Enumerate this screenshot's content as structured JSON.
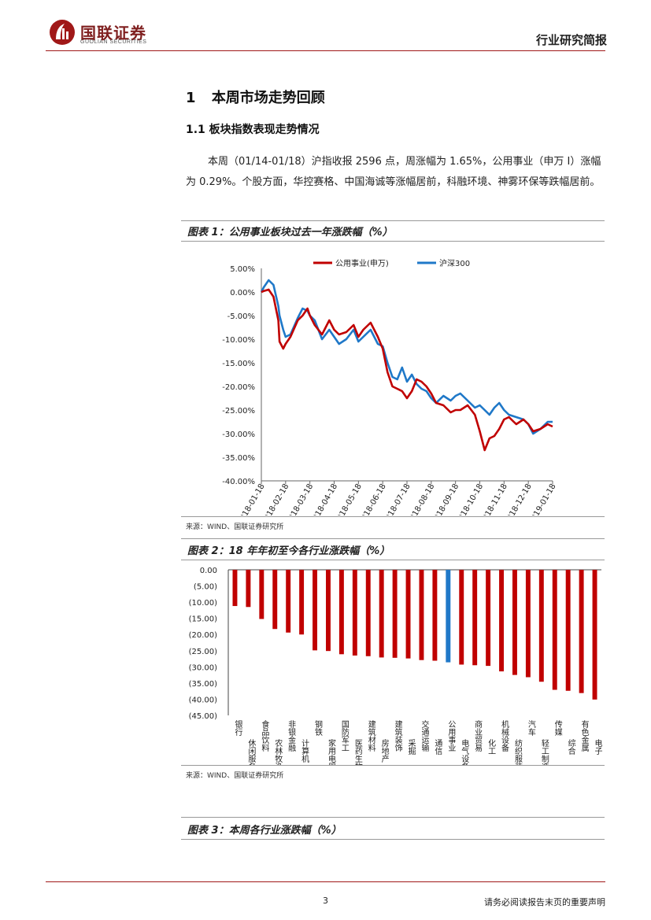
{
  "header": {
    "logo_text": "国联证券",
    "logo_sub": "GUOLIAN SECURITIES",
    "report_type": "行业研究简报",
    "brand_color": "#a01818"
  },
  "section": {
    "h1_num": "1",
    "h1_title": "本周市场走势回顾",
    "h2": "1.1 板块指数表现走势情况",
    "paragraph": "本周（01/14-01/18）沪指收报 2596 点，周涨幅为 1.65%，公用事业（申万 I）涨幅为 0.29%。个股方面，华控赛格、中国海诚等涨幅居前，科融环境、神雾环保等跌幅居前。"
  },
  "figure1": {
    "title": "图表 1：公用事业板块过去一年涨跌幅（%）",
    "source": "来源：WIND、国联证券研究所"
  },
  "figure2": {
    "title": "图表 2：18 年年初至今各行业涨跌幅（%）",
    "source": "来源：WIND、国联证券研究所"
  },
  "figure3": {
    "title": "图表 3：本周各行业涨跌幅（%）"
  },
  "footer": {
    "page": "3",
    "disclaimer": "请务必阅读报告末页的重要声明"
  },
  "chart_data": [
    {
      "type": "line",
      "title": "",
      "ylim": [
        -40,
        5
      ],
      "y_ticks": [
        5,
        0,
        -5,
        -10,
        -15,
        -20,
        -25,
        -30,
        -35,
        -40
      ],
      "y_tick_labels": [
        "5.00%",
        "0.00%",
        "-5.00%",
        "-10.00%",
        "-15.00%",
        "-20.00%",
        "-25.00%",
        "-30.00%",
        "-35.00%",
        "-40.00%"
      ],
      "categories": [
        "2018-01-18",
        "2018-02-18",
        "2018-03-18",
        "2018-04-18",
        "2018-05-18",
        "2018-06-18",
        "2018-07-18",
        "2018-08-18",
        "2018-09-18",
        "2018-10-18",
        "2018-11-18",
        "2018-12-18",
        "2019-01-18"
      ],
      "legend_position": "top",
      "series": [
        {
          "name": "公用事业(申万)",
          "color": "#c00000",
          "x": [
            0,
            0.1,
            0.3,
            0.5,
            0.7,
            0.75,
            0.9,
            1.0,
            1.2,
            1.5,
            1.7,
            1.9,
            2.0,
            2.2,
            2.5,
            2.8,
            3.0,
            3.2,
            3.5,
            3.8,
            4.0,
            4.2,
            4.5,
            4.8,
            5.0,
            5.2,
            5.4,
            5.6,
            5.8,
            6.0,
            6.2,
            6.4,
            6.6,
            6.8,
            7.0,
            7.2,
            7.5,
            7.8,
            8.0,
            8.2,
            8.5,
            8.8,
            9.0,
            9.2,
            9.4,
            9.6,
            9.8,
            10.0,
            10.2,
            10.5,
            10.8,
            11.0,
            11.2,
            11.5,
            11.8,
            12.0
          ],
          "values": [
            0,
            0.2,
            0.5,
            -1.0,
            -6.0,
            -10.5,
            -12.0,
            -11.0,
            -9.5,
            -6.0,
            -5.0,
            -3.5,
            -5.0,
            -7.0,
            -9.0,
            -6.0,
            -8.0,
            -9.0,
            -8.5,
            -7.0,
            -9.5,
            -8.0,
            -6.5,
            -9.5,
            -12.0,
            -17.0,
            -20.0,
            -20.5,
            -21.0,
            -22.5,
            -21.0,
            -18.5,
            -19.0,
            -20.0,
            -21.5,
            -23.5,
            -24.0,
            -25.5,
            -25.0,
            -25.0,
            -24.0,
            -26.0,
            -29.5,
            -33.5,
            -31.0,
            -30.5,
            -29.0,
            -27.0,
            -26.5,
            -28.0,
            -27.0,
            -28.0,
            -29.5,
            -29.0,
            -28.0,
            -28.5
          ]
        },
        {
          "name": "沪深300",
          "color": "#1f78c8",
          "x": [
            0,
            0.1,
            0.3,
            0.5,
            0.7,
            0.75,
            0.9,
            1.0,
            1.2,
            1.5,
            1.7,
            1.9,
            2.0,
            2.2,
            2.5,
            2.8,
            3.0,
            3.2,
            3.5,
            3.8,
            4.0,
            4.2,
            4.5,
            4.8,
            5.0,
            5.2,
            5.4,
            5.6,
            5.8,
            6.0,
            6.2,
            6.4,
            6.6,
            6.8,
            7.0,
            7.2,
            7.5,
            7.8,
            8.0,
            8.2,
            8.5,
            8.8,
            9.0,
            9.2,
            9.4,
            9.6,
            9.8,
            10.0,
            10.2,
            10.5,
            10.8,
            11.0,
            11.2,
            11.5,
            11.8,
            12.0
          ],
          "values": [
            0,
            1.0,
            2.5,
            1.5,
            -3.0,
            -5.0,
            -8.0,
            -9.5,
            -9.0,
            -5.5,
            -3.5,
            -4.0,
            -5.0,
            -6.0,
            -10.0,
            -8.0,
            -9.5,
            -11.0,
            -10.0,
            -8.0,
            -10.5,
            -9.5,
            -8.0,
            -11.0,
            -11.5,
            -15.0,
            -18.0,
            -18.5,
            -16.0,
            -19.0,
            -17.5,
            -19.5,
            -20.5,
            -21.0,
            -22.5,
            -23.5,
            -22.0,
            -23.0,
            -22.0,
            -21.5,
            -23.0,
            -24.5,
            -24.0,
            -25.0,
            -26.0,
            -24.5,
            -23.5,
            -25.0,
            -26.0,
            -26.5,
            -27.0,
            -28.0,
            -30.0,
            -29.0,
            -27.5,
            -27.5
          ]
        }
      ]
    },
    {
      "type": "bar",
      "title": "",
      "ylim": [
        -45,
        0
      ],
      "y_ticks": [
        0,
        -5,
        -10,
        -15,
        -20,
        -25,
        -30,
        -35,
        -40,
        -45
      ],
      "y_tick_labels": [
        "0.00",
        "(5.00)",
        "(10.00)",
        "(15.00)",
        "(20.00)",
        "(25.00)",
        "(30.00)",
        "(35.00)",
        "(40.00)",
        "(45.00)"
      ],
      "categories": [
        "银行",
        "休闲服务",
        "食品饮料",
        "农林牧渔",
        "非银金融",
        "计算机",
        "钢铁",
        "家用电器",
        "国防军工",
        "医药生物",
        "建筑材料",
        "房地产",
        "建筑装饰",
        "采掘",
        "交通运输",
        "通信",
        "公用事业",
        "电气设备",
        "商业贸易",
        "化工",
        "机械设备",
        "纺织服装",
        "汽车",
        "轻工制造",
        "传媒",
        "综合",
        "有色金属",
        "电子"
      ],
      "values": [
        -11.2,
        -11.5,
        -15.2,
        -18.3,
        -19.4,
        -20.0,
        -24.9,
        -25.1,
        -26.1,
        -26.5,
        -26.7,
        -27.1,
        -27.2,
        -27.4,
        -27.9,
        -28.1,
        -28.6,
        -29.3,
        -29.5,
        -29.7,
        -31.4,
        -32.5,
        -33.2,
        -34.6,
        -37.1,
        -37.4,
        -38.1,
        -40.1
      ],
      "colors": [
        "#c00000",
        "#c00000",
        "#c00000",
        "#c00000",
        "#c00000",
        "#c00000",
        "#c00000",
        "#c00000",
        "#c00000",
        "#c00000",
        "#c00000",
        "#c00000",
        "#c00000",
        "#c00000",
        "#c00000",
        "#c00000",
        "#1f78c8",
        "#c00000",
        "#c00000",
        "#c00000",
        "#c00000",
        "#c00000",
        "#c00000",
        "#c00000",
        "#c00000",
        "#c00000",
        "#c00000",
        "#c00000"
      ]
    }
  ]
}
